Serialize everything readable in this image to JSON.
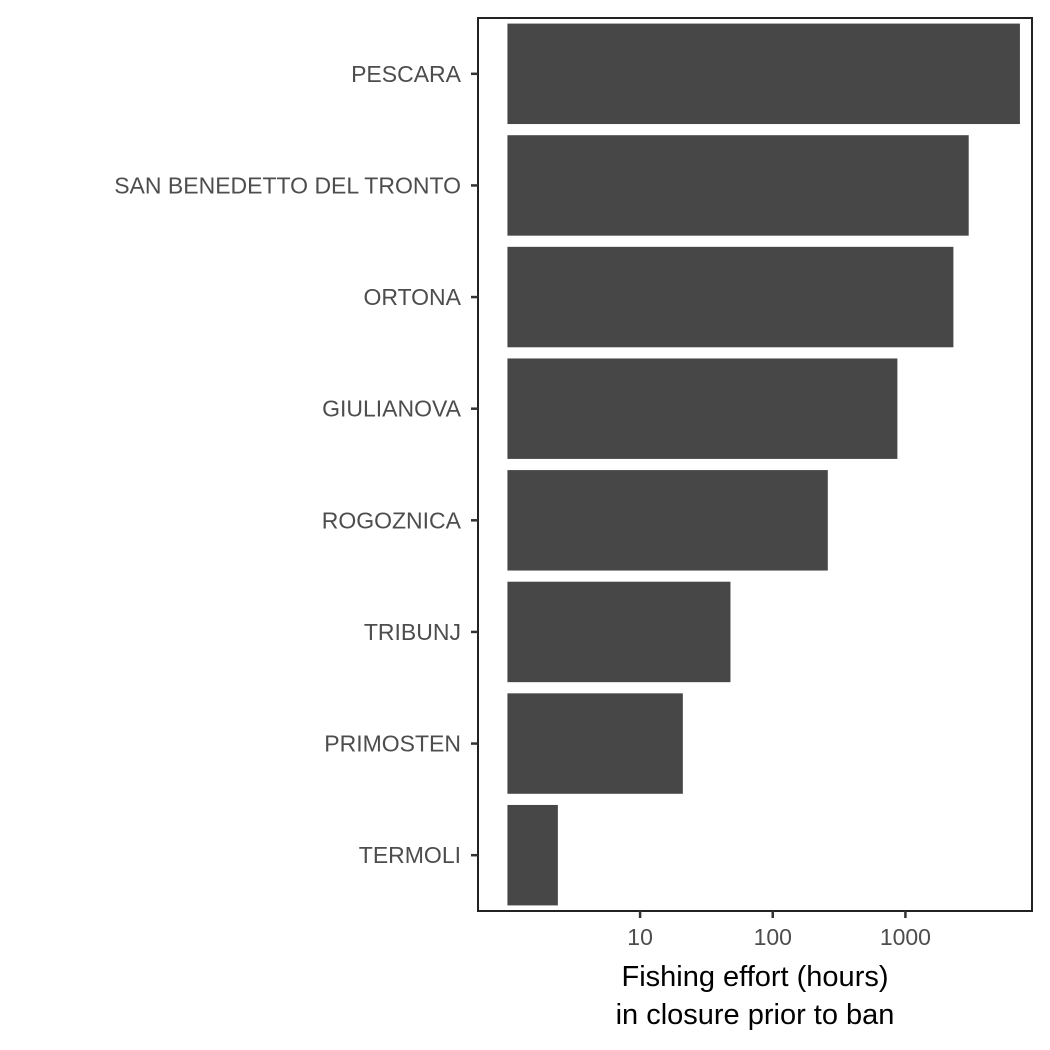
{
  "chart_data": {
    "type": "bar",
    "orientation": "horizontal",
    "categories": [
      "PESCARA",
      "SAN BENEDETTO DEL TRONTO",
      "ORTONA",
      "GIULIANOVA",
      "ROGOZNICA",
      "TRIBUNJ",
      "PRIMOSTEN",
      "TERMOLI"
    ],
    "values": [
      7300,
      3000,
      2300,
      870,
      260,
      48,
      21,
      2.4
    ],
    "xlabel_line1": "Fishing effort (hours)",
    "xlabel_line2": "in closure prior to ban",
    "xscale": "log10",
    "xlim": [
      0.6,
      9000
    ],
    "xticks": [
      10,
      100,
      1000
    ],
    "xtick_labels": [
      "10",
      "100",
      "1000"
    ],
    "grid": false,
    "legend": "none",
    "bar_color": "#474747",
    "frame_color": "#222222"
  }
}
